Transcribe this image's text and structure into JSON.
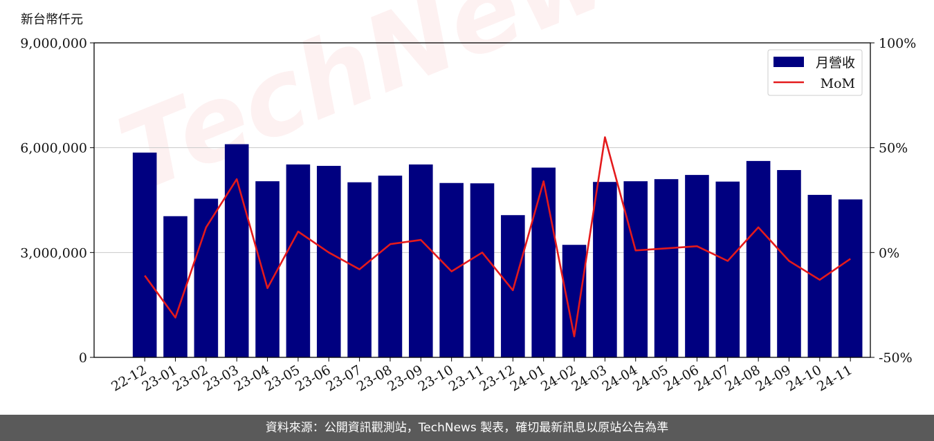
{
  "watermark": "TechNews",
  "footer": "資料來源：公開資訊觀測站，TechNews 製表，確切最新訊息以原站公告為準",
  "colors": {
    "bar": "#000080",
    "line": "#e41a1c",
    "footer_bg": "#5a5a5a"
  },
  "chart_data": {
    "type": "bar",
    "ylabel": "新台幣仟元",
    "categories": [
      "22-12",
      "23-01",
      "23-02",
      "23-03",
      "23-04",
      "23-05",
      "23-06",
      "23-07",
      "23-08",
      "23-09",
      "23-10",
      "23-11",
      "23-12",
      "24-01",
      "24-02",
      "24-03",
      "24-04",
      "24-05",
      "24-06",
      "24-07",
      "24-08",
      "24-09",
      "24-10",
      "24-11"
    ],
    "series": [
      {
        "name": "月營收",
        "type": "bar",
        "axis": "left",
        "values": [
          5860000,
          4040000,
          4540000,
          6100000,
          5040000,
          5520000,
          5480000,
          5010000,
          5200000,
          5520000,
          4990000,
          4980000,
          4070000,
          5430000,
          3220000,
          5020000,
          5040000,
          5100000,
          5220000,
          5030000,
          5620000,
          5360000,
          4650000,
          4520000
        ]
      },
      {
        "name": "MoM",
        "type": "line",
        "axis": "right",
        "values": [
          -11,
          -31,
          12,
          35,
          -17,
          10,
          0,
          -8,
          4,
          6,
          -9,
          0,
          -18,
          34,
          -40,
          55,
          1,
          2,
          3,
          -4,
          12,
          -4,
          -13,
          -3
        ]
      }
    ],
    "ylim_left": [
      0,
      9000000
    ],
    "yticks_left": [
      "0",
      "3,000,000",
      "6,000,000",
      "9,000,000"
    ],
    "ylim_right": [
      -50,
      100
    ],
    "yticks_right": [
      "-50%",
      "0%",
      "50%",
      "100%"
    ],
    "grid": "horizontal",
    "legend": "top-right"
  }
}
